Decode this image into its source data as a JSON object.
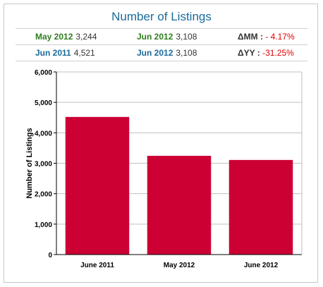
{
  "title": "Number of Listings",
  "stats": {
    "row1": {
      "a_label": "May 2012",
      "a_value": "3,244",
      "b_label": "Jun 2012",
      "b_value": "3,108",
      "delta_label": "ΔMM :",
      "delta_value": "- 4.17%"
    },
    "row2": {
      "a_label": "Jun 2011",
      "a_value": "4,521",
      "b_label": "Jun 2012",
      "b_value": "3,108",
      "delta_label": "ΔYY :",
      "delta_value": "-31.25%"
    }
  },
  "chart_data": {
    "type": "bar",
    "categories": [
      "June 2011",
      "May 2012",
      "June 2012"
    ],
    "values": [
      4521,
      3244,
      3108
    ],
    "xlabel": "",
    "ylabel": "Number of Listings",
    "ylim": [
      0,
      6000
    ],
    "yticks": [
      0,
      1000,
      2000,
      3000,
      4000,
      5000,
      6000
    ],
    "ytick_labels": [
      "0",
      "1,000",
      "2,000",
      "3,000",
      "4,000",
      "5,000",
      "6,000"
    ],
    "grid": true,
    "bar_color": "#cc0033"
  }
}
